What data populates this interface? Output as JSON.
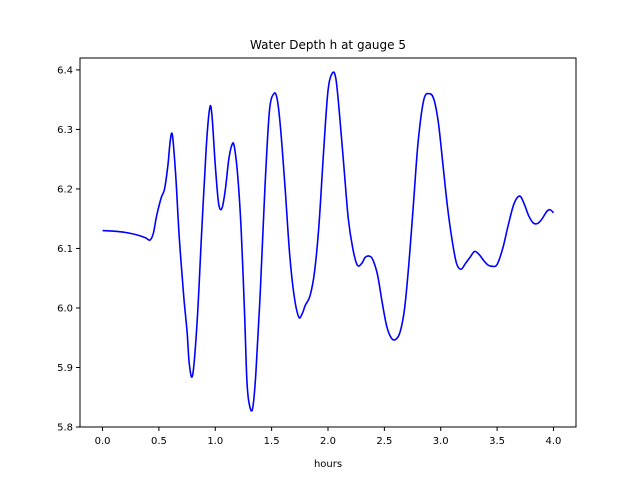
{
  "chart_data": {
    "type": "line",
    "title": "Water Depth h at gauge 5",
    "xlabel": "hours",
    "ylabel": "",
    "xlim": [
      -0.2,
      4.2
    ],
    "ylim": [
      5.8,
      6.42
    ],
    "xticks": [
      0.0,
      0.5,
      1.0,
      1.5,
      2.0,
      2.5,
      3.0,
      3.5,
      4.0
    ],
    "xtick_labels": [
      "0.0",
      "0.5",
      "1.0",
      "1.5",
      "2.0",
      "2.5",
      "3.0",
      "3.5",
      "4.0"
    ],
    "yticks": [
      5.8,
      5.9,
      6.0,
      6.1,
      6.2,
      6.3,
      6.4
    ],
    "ytick_labels": [
      "5.8",
      "5.9",
      "6.0",
      "6.1",
      "6.2",
      "6.3",
      "6.4"
    ],
    "grid": false,
    "series": [
      {
        "color": "#0000ff",
        "x": [
          0.0,
          0.1,
          0.2,
          0.3,
          0.38,
          0.42,
          0.45,
          0.48,
          0.52,
          0.55,
          0.58,
          0.6,
          0.62,
          0.65,
          0.68,
          0.72,
          0.75,
          0.77,
          0.8,
          0.84,
          0.88,
          0.92,
          0.95,
          0.97,
          1.0,
          1.03,
          1.06,
          1.09,
          1.12,
          1.15,
          1.17,
          1.2,
          1.23,
          1.26,
          1.28,
          1.3,
          1.33,
          1.36,
          1.4,
          1.44,
          1.48,
          1.52,
          1.55,
          1.58,
          1.62,
          1.66,
          1.7,
          1.74,
          1.77,
          1.8,
          1.84,
          1.88,
          1.92,
          1.96,
          2.0,
          2.04,
          2.07,
          2.1,
          2.14,
          2.18,
          2.22,
          2.26,
          2.3,
          2.33,
          2.37,
          2.4,
          2.44,
          2.48,
          2.52,
          2.56,
          2.6,
          2.64,
          2.68,
          2.72,
          2.76,
          2.8,
          2.85,
          2.9,
          2.94,
          2.98,
          3.02,
          3.06,
          3.1,
          3.14,
          3.18,
          3.22,
          3.26,
          3.3,
          3.34,
          3.38,
          3.42,
          3.46,
          3.5,
          3.55,
          3.6,
          3.65,
          3.7,
          3.74,
          3.78,
          3.82,
          3.86,
          3.9,
          3.94,
          3.97,
          4.0
        ],
        "y": [
          6.13,
          6.129,
          6.127,
          6.123,
          6.118,
          6.114,
          6.125,
          6.155,
          6.185,
          6.2,
          6.24,
          6.28,
          6.29,
          6.22,
          6.12,
          6.02,
          5.96,
          5.905,
          5.888,
          5.98,
          6.13,
          6.27,
          6.335,
          6.325,
          6.24,
          6.175,
          6.168,
          6.2,
          6.25,
          6.275,
          6.27,
          6.22,
          6.13,
          5.99,
          5.88,
          5.84,
          5.83,
          5.89,
          6.03,
          6.2,
          6.33,
          6.36,
          6.35,
          6.3,
          6.2,
          6.09,
          6.02,
          5.985,
          5.99,
          6.005,
          6.02,
          6.06,
          6.14,
          6.26,
          6.365,
          6.395,
          6.385,
          6.33,
          6.24,
          6.15,
          6.1,
          6.072,
          6.075,
          6.085,
          6.087,
          6.08,
          6.055,
          6.01,
          5.97,
          5.95,
          5.947,
          5.96,
          6.0,
          6.08,
          6.18,
          6.28,
          6.35,
          6.36,
          6.35,
          6.31,
          6.24,
          6.17,
          6.115,
          6.075,
          6.065,
          6.075,
          6.085,
          6.095,
          6.09,
          6.08,
          6.072,
          6.07,
          6.073,
          6.1,
          6.14,
          6.175,
          6.188,
          6.175,
          6.155,
          6.143,
          6.142,
          6.15,
          6.162,
          6.165,
          6.16
        ]
      }
    ]
  }
}
